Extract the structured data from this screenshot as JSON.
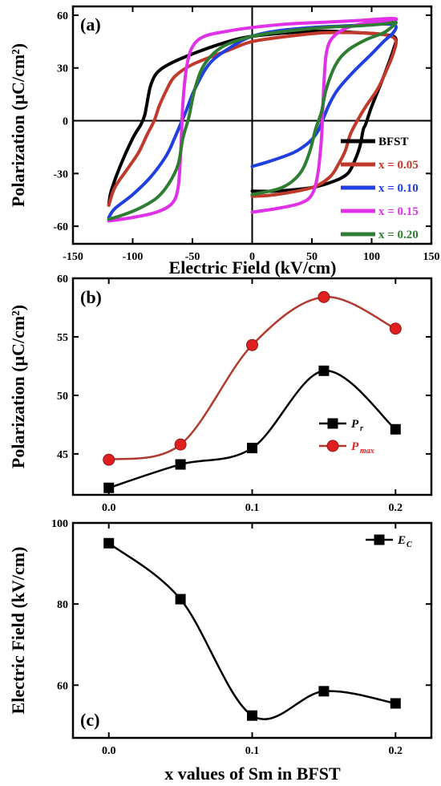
{
  "chart_data": [
    {
      "panel": "(a)",
      "type": "line",
      "xlabel": "Electric Field (kV/cm)",
      "ylabel": "Polarization (μC/cm²)",
      "xlim": [
        -150,
        150
      ],
      "ylim": [
        -70,
        65
      ],
      "xticks": [
        -150,
        -100,
        -50,
        0,
        50,
        100,
        150
      ],
      "yticks": [
        -60,
        -30,
        0,
        30,
        60
      ],
      "legend_position": "bottom-right",
      "series": [
        {
          "name": "BFST",
          "color": "#000000",
          "x": [
            -120,
            -118,
            -110,
            -100,
            -93,
            -90,
            -88,
            -85,
            -80,
            -70,
            -50,
            -20,
            0,
            30,
            60,
            90,
            110,
            120,
            118,
            110,
            100,
            95,
            93,
            90,
            85,
            80,
            70,
            50,
            20,
            0
          ],
          "y": [
            -48,
            -40,
            -25,
            -10,
            -2,
            3,
            10,
            20,
            27,
            32,
            38,
            45,
            48,
            50,
            51,
            50,
            49,
            47,
            40,
            25,
            8,
            -2,
            -5,
            -15,
            -24,
            -30,
            -34,
            -38,
            -40,
            -40
          ]
        },
        {
          "name": "x = 0.05",
          "color": "#c0392b",
          "x": [
            -120,
            -115,
            -105,
            -95,
            -88,
            -82,
            -78,
            -72,
            -65,
            -50,
            -20,
            0,
            30,
            60,
            90,
            110,
            120,
            118,
            112,
            105,
            95,
            88,
            82,
            78,
            72,
            65,
            50,
            20,
            0
          ],
          "y": [
            -48,
            -38,
            -28,
            -18,
            -8,
            0,
            8,
            17,
            25,
            32,
            40,
            45,
            48,
            50,
            50,
            49,
            46,
            38,
            28,
            18,
            8,
            0,
            -8,
            -17,
            -25,
            -32,
            -38,
            -42,
            -43
          ]
        },
        {
          "name": "x = 0.10",
          "color": "#1f3fe0",
          "x": [
            -120,
            -115,
            -100,
            -85,
            -72,
            -65,
            -60,
            -55,
            -48,
            -35,
            -15,
            0,
            20,
            50,
            80,
            110,
            120,
            118,
            110,
            100,
            85,
            72,
            65,
            60,
            55,
            48,
            35,
            15,
            0
          ],
          "y": [
            -55,
            -50,
            -42,
            -32,
            -20,
            -10,
            -2,
            6,
            18,
            33,
            43,
            48,
            51,
            53,
            54,
            55,
            54,
            50,
            45,
            38,
            28,
            18,
            10,
            2,
            -6,
            -12,
            -18,
            -23,
            -26
          ]
        },
        {
          "name": "x = 0.15",
          "color": "#e030e8",
          "x": [
            -120,
            -100,
            -80,
            -67,
            -62,
            -60,
            -59,
            -58,
            -55,
            -50,
            -40,
            -20,
            0,
            30,
            60,
            90,
            110,
            120,
            118,
            100,
            80,
            67,
            62,
            60,
            59,
            58,
            55,
            50,
            40,
            20,
            0
          ],
          "y": [
            -57,
            -55,
            -52,
            -47,
            -38,
            -20,
            -5,
            10,
            30,
            42,
            48,
            51,
            53,
            55,
            56,
            57,
            58,
            58,
            57,
            56,
            53,
            47,
            38,
            20,
            5,
            -10,
            -30,
            -42,
            -47,
            -50,
            -52
          ]
        },
        {
          "name": "x = 0.20",
          "color": "#2e7d32",
          "x": [
            -120,
            -110,
            -95,
            -80,
            -70,
            -62,
            -58,
            -53,
            -48,
            -40,
            -25,
            0,
            30,
            60,
            90,
            110,
            120,
            118,
            110,
            95,
            80,
            70,
            62,
            58,
            53,
            48,
            40,
            25,
            0
          ],
          "y": [
            -56,
            -54,
            -50,
            -44,
            -36,
            -25,
            -10,
            2,
            18,
            32,
            42,
            48,
            51,
            53,
            54,
            55,
            56,
            54,
            50,
            46,
            40,
            32,
            18,
            5,
            -5,
            -18,
            -30,
            -38,
            -42
          ]
        }
      ]
    },
    {
      "panel": "(b)",
      "type": "line",
      "xlabel": "",
      "ylabel": "Polarization (μC/cm²)",
      "xlim": [
        -0.025,
        0.225
      ],
      "ylim": [
        41.5,
        60
      ],
      "xticks": [
        0.0,
        0.1,
        0.2
      ],
      "xticklabels": [
        "0.0",
        "0.1",
        "0.2"
      ],
      "yticks": [
        45,
        50,
        55,
        60
      ],
      "legend_position": "right",
      "categories": [
        0.0,
        0.05,
        0.1,
        0.15,
        0.2
      ],
      "series": [
        {
          "name": "P_r",
          "label_main": "P",
          "label_sub": "r",
          "color": "#000000",
          "marker": "square",
          "values": [
            42.1,
            44.1,
            45.5,
            52.1,
            47.1
          ]
        },
        {
          "name": "P_max",
          "label_main": "P",
          "label_sub": "max",
          "color": "#e02020",
          "line_color": "#b03a2e",
          "marker": "circle",
          "values": [
            44.5,
            45.8,
            54.3,
            58.4,
            55.7
          ]
        }
      ]
    },
    {
      "panel": "(c)",
      "type": "line",
      "xlabel": "x values of Sm in BFST",
      "ylabel": "Electric Field (kV/cm)",
      "xlim": [
        -0.025,
        0.225
      ],
      "ylim": [
        47,
        100
      ],
      "xticks": [
        0.0,
        0.1,
        0.2
      ],
      "xticklabels": [
        "0.0",
        "0.1",
        "0.2"
      ],
      "yticks": [
        60,
        80,
        100
      ],
      "legend_position": "top-right",
      "categories": [
        0.0,
        0.05,
        0.1,
        0.15,
        0.2
      ],
      "series": [
        {
          "name": "E_C",
          "label_main": "E",
          "label_sub": "C",
          "color": "#000000",
          "marker": "square",
          "values": [
            95.0,
            81.2,
            52.5,
            58.5,
            55.5
          ]
        }
      ]
    }
  ]
}
